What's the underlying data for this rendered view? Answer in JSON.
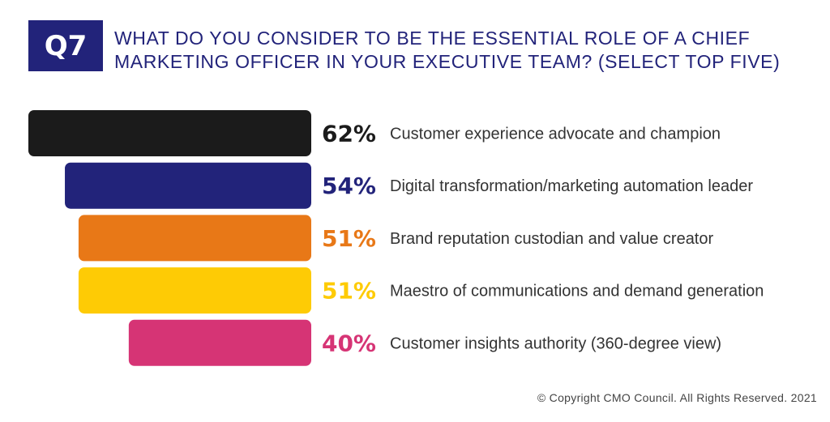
{
  "badge": "Q7",
  "chart_data": {
    "type": "bar",
    "orientation": "horizontal",
    "title": "WHAT DO YOU CONSIDER TO BE THE ESSENTIAL ROLE OF A CHIEF MARKETING OFFICER IN YOUR EXECUTIVE TEAM? (SELECT TOP FIVE)",
    "categories": [
      "Customer experience advocate and champion",
      "Digital transformation/marketing automation leader",
      "Brand reputation custodian and value creator",
      "Maestro of communications and demand generation",
      "Customer insights authority (360-degree view)"
    ],
    "values": [
      62,
      54,
      51,
      51,
      40
    ],
    "value_labels": [
      "62%",
      "54%",
      "51%",
      "51%",
      "40%"
    ],
    "colors": [
      "#1b1b1b",
      "#22237a",
      "#e87817",
      "#fecb05",
      "#d63475"
    ],
    "grid": false
  },
  "footer": "© Copyright CMO Council. All Rights Reserved. 2021"
}
